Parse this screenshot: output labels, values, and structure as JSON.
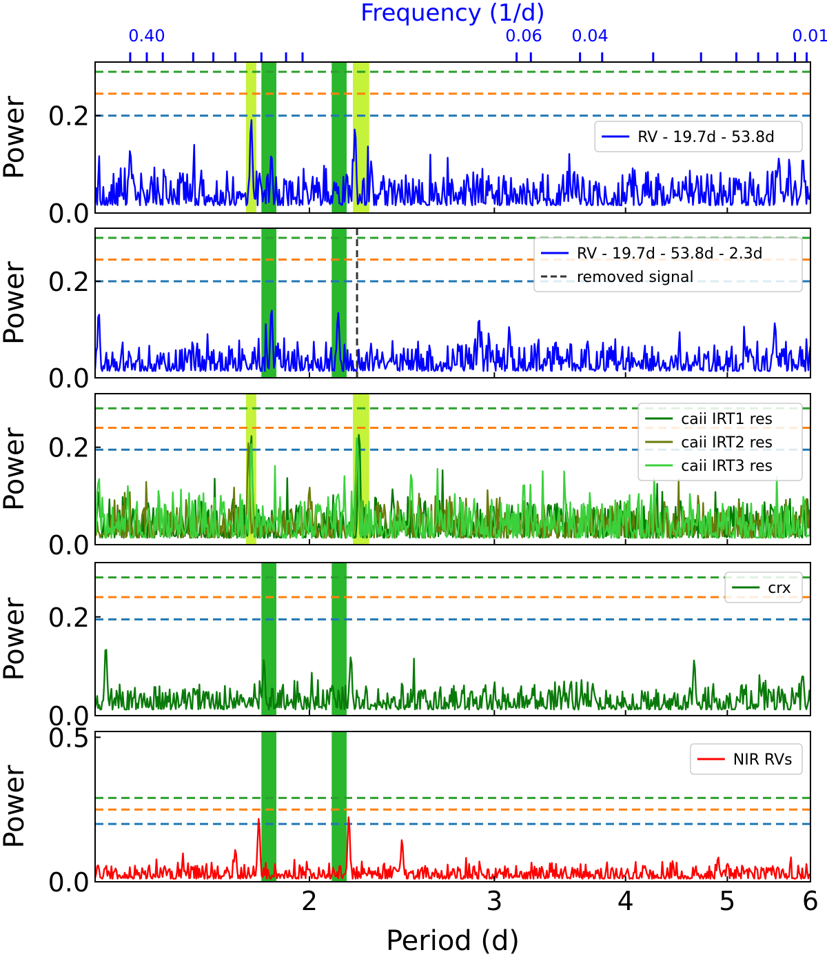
{
  "chart_data": {
    "type": "line",
    "title": "Frequency (1/d)",
    "xlabel": "Period (d)",
    "xscale": "log",
    "xlim": [
      1.25,
      6.0
    ],
    "x_ticks": [
      {
        "value": 2,
        "label": "2"
      },
      {
        "value": 3,
        "label": "3"
      },
      {
        "value": 4,
        "label": "4"
      },
      {
        "value": 5,
        "label": "5"
      },
      {
        "value": 6,
        "label": "6"
      }
    ],
    "top_axis": {
      "label": "Frequency (1/d)",
      "color": "#0000ff",
      "tick_labels": [
        {
          "label": "0.40",
          "period": 1.4
        },
        {
          "label": "0.06",
          "period": 3.2
        },
        {
          "label": "0.04",
          "period": 3.7
        },
        {
          "label": "0.01",
          "period": 6.0
        }
      ],
      "tick_periods": [
        1.35,
        1.4,
        1.45,
        1.55,
        1.62,
        1.7,
        1.8,
        1.9,
        1.97,
        3.15,
        3.25,
        3.62,
        3.8,
        4.25,
        4.72,
        5.1,
        5.35,
        5.58,
        5.8,
        5.95
      ]
    },
    "colors": {
      "rv": "#0000ff",
      "threshold_blue": "#1f77b4",
      "threshold_orange": "#ff7f0e",
      "threshold_green": "#2ca02c",
      "band_green": "#2ab72e",
      "band_lime": "#c5f23a",
      "ca1": "#007a00",
      "ca2": "#6b7a0a",
      "ca3": "#3cd13c",
      "crx": "#0a7a0a",
      "nir": "#ff0000"
    },
    "green_bands": [
      [
        1.8,
        1.86
      ],
      [
        2.1,
        2.17
      ]
    ],
    "lime_bands": [
      [
        1.74,
        1.78
      ],
      [
        2.2,
        2.28
      ]
    ],
    "panels": [
      {
        "id": "rv",
        "ylabel": "Power",
        "ylim": [
          0,
          0.31
        ],
        "yticks": [
          "0.0",
          "0.2"
        ],
        "ytick_values": [
          0.0,
          0.2
        ],
        "thresholds": {
          "blue": 0.2,
          "orange": 0.245,
          "green": 0.29
        },
        "bands": [
          "green",
          "lime"
        ],
        "legend": [
          {
            "label": "RV - 19.7d - 53.8d",
            "color": "#0000ff",
            "style": "solid"
          }
        ],
        "series": [
          {
            "name": "RV - 19.7d - 53.8d",
            "color": "#0000ff",
            "base": 0.045,
            "noise": 0.045,
            "seed": 11,
            "peaks": [
              [
                1.35,
                0.14
              ],
              [
                1.76,
                0.2
              ],
              [
                1.84,
                0.13
              ],
              [
                2.21,
                0.185
              ],
              [
                2.29,
                0.11
              ],
              [
                5.6,
                0.12
              ],
              [
                5.9,
                0.12
              ]
            ]
          }
        ],
        "removed_signal": null
      },
      {
        "id": "rv-res",
        "ylabel": "Power",
        "ylim": [
          0,
          0.31
        ],
        "yticks": [
          "0.0",
          "0.2"
        ],
        "ytick_values": [
          0.0,
          0.2
        ],
        "thresholds": {
          "blue": 0.2,
          "orange": 0.245,
          "green": 0.29
        },
        "bands": [
          "green"
        ],
        "legend": [
          {
            "label": "RV - 19.7d - 53.8d - 2.3d",
            "color": "#0000ff",
            "style": "solid"
          },
          {
            "label": "removed signal",
            "color": "#333333",
            "style": "dashed"
          }
        ],
        "series": [
          {
            "name": "RV - 19.7d - 53.8d - 2.3d",
            "color": "#0000ff",
            "base": 0.04,
            "noise": 0.04,
            "seed": 23,
            "peaks": [
              [
                1.26,
                0.14
              ],
              [
                1.84,
                0.15
              ],
              [
                2.13,
                0.145
              ],
              [
                2.9,
                0.13
              ],
              [
                3.1,
                0.11
              ],
              [
                5.55,
                0.12
              ]
            ]
          }
        ],
        "removed_signal": 2.22
      },
      {
        "id": "caii",
        "ylabel": "Power",
        "ylim": [
          0,
          0.31
        ],
        "yticks": [
          "0.0",
          "0.2"
        ],
        "ytick_values": [
          0.0,
          0.2
        ],
        "thresholds": {
          "blue": 0.195,
          "orange": 0.24,
          "green": 0.28
        },
        "bands": [
          "lime"
        ],
        "legend": [
          {
            "label": "caii IRT1 res",
            "color": "#007a00",
            "style": "solid"
          },
          {
            "label": "caii IRT2 res",
            "color": "#6b7a0a",
            "style": "solid"
          },
          {
            "label": "caii IRT3 res",
            "color": "#3cd13c",
            "style": "solid"
          }
        ],
        "series": [
          {
            "name": "caii IRT1 res",
            "color": "#007a00",
            "base": 0.04,
            "noise": 0.05,
            "seed": 31,
            "peaks": [
              [
                1.76,
                0.23
              ],
              [
                2.23,
                0.245
              ],
              [
                2.4,
                0.12
              ]
            ]
          },
          {
            "name": "caii IRT2 res",
            "color": "#6b7a0a",
            "base": 0.04,
            "noise": 0.05,
            "seed": 37,
            "peaks": [
              [
                1.75,
                0.21
              ],
              [
                2.22,
                0.23
              ],
              [
                2.0,
                0.13
              ]
            ]
          },
          {
            "name": "caii IRT3 res",
            "color": "#3cd13c",
            "base": 0.04,
            "noise": 0.055,
            "seed": 41,
            "peaks": [
              [
                1.26,
                0.15
              ],
              [
                1.76,
                0.22
              ],
              [
                2.22,
                0.24
              ],
              [
                2.5,
                0.16
              ],
              [
                3.2,
                0.14
              ]
            ]
          }
        ],
        "removed_signal": null
      },
      {
        "id": "crx",
        "ylabel": "Power",
        "ylim": [
          0,
          0.31
        ],
        "yticks": [
          "0.0",
          "0.2"
        ],
        "ytick_values": [
          0.0,
          0.2
        ],
        "thresholds": {
          "blue": 0.195,
          "orange": 0.24,
          "green": 0.28
        },
        "bands": [
          "green"
        ],
        "legend": [
          {
            "label": "crx",
            "color": "#0a7a0a",
            "style": "solid"
          }
        ],
        "series": [
          {
            "name": "crx",
            "color": "#0a7a0a",
            "base": 0.035,
            "noise": 0.035,
            "seed": 53,
            "peaks": [
              [
                1.28,
                0.15
              ],
              [
                1.81,
                0.12
              ],
              [
                2.19,
                0.13
              ],
              [
                4.65,
                0.12
              ],
              [
                5.9,
                0.09
              ]
            ]
          }
        ],
        "removed_signal": null
      },
      {
        "id": "nir",
        "ylabel": "Power",
        "ylim": [
          0,
          0.52
        ],
        "yticks": [
          "0.0",
          "0.5"
        ],
        "ytick_values": [
          0.0,
          0.5
        ],
        "thresholds": {
          "blue": 0.2,
          "orange": 0.25,
          "green": 0.29
        },
        "bands": [
          "green"
        ],
        "legend": [
          {
            "label": "NIR RVs",
            "color": "#ff0000",
            "style": "solid"
          }
        ],
        "series": [
          {
            "name": "NIR RVs",
            "color": "#ff0000",
            "base": 0.03,
            "noise": 0.035,
            "seed": 67,
            "peaks": [
              [
                1.79,
                0.23
              ],
              [
                2.18,
                0.23
              ],
              [
                2.45,
                0.15
              ],
              [
                1.7,
                0.12
              ],
              [
                4.9,
                0.09
              ]
            ]
          }
        ],
        "removed_signal": null
      }
    ]
  }
}
